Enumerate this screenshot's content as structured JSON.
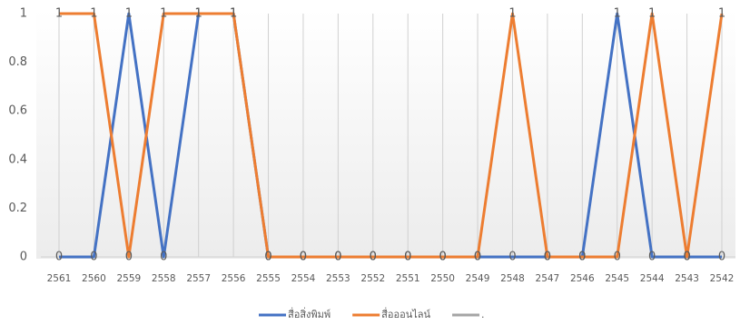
{
  "chart_data": {
    "type": "line",
    "categories": [
      "2561",
      "2560",
      "2559",
      "2558",
      "2557",
      "2556",
      "2555",
      "2554",
      "2553",
      "2552",
      "2551",
      "2550",
      "2549",
      "2548",
      "2547",
      "2546",
      "2545",
      "2544",
      "2543",
      "2542"
    ],
    "series": [
      {
        "name": "สื่อสิ่งพิมพ์",
        "color": "#4472c4",
        "values": [
          0,
          0,
          1,
          0,
          1,
          1,
          0,
          0,
          0,
          0,
          0,
          0,
          0,
          0,
          0,
          0,
          1,
          0,
          0,
          0
        ]
      },
      {
        "name": "สื่อออนไลน์",
        "color": "#ed7d31",
        "values": [
          1,
          1,
          0,
          1,
          1,
          1,
          0,
          0,
          0,
          0,
          0,
          0,
          0,
          1,
          0,
          0,
          0,
          1,
          0,
          1
        ]
      },
      {
        "name": ".",
        "color": "#a5a5a5",
        "values": [
          null,
          null,
          null,
          null,
          null,
          null,
          null,
          null,
          null,
          null,
          null,
          null,
          null,
          null,
          null,
          null,
          null,
          null,
          null,
          null
        ]
      }
    ],
    "ylim": [
      0,
      1
    ],
    "yticks": [
      0,
      0.2,
      0.4,
      0.6,
      0.8,
      1
    ],
    "grid": true,
    "data_labels": true,
    "legend": "bottom"
  }
}
